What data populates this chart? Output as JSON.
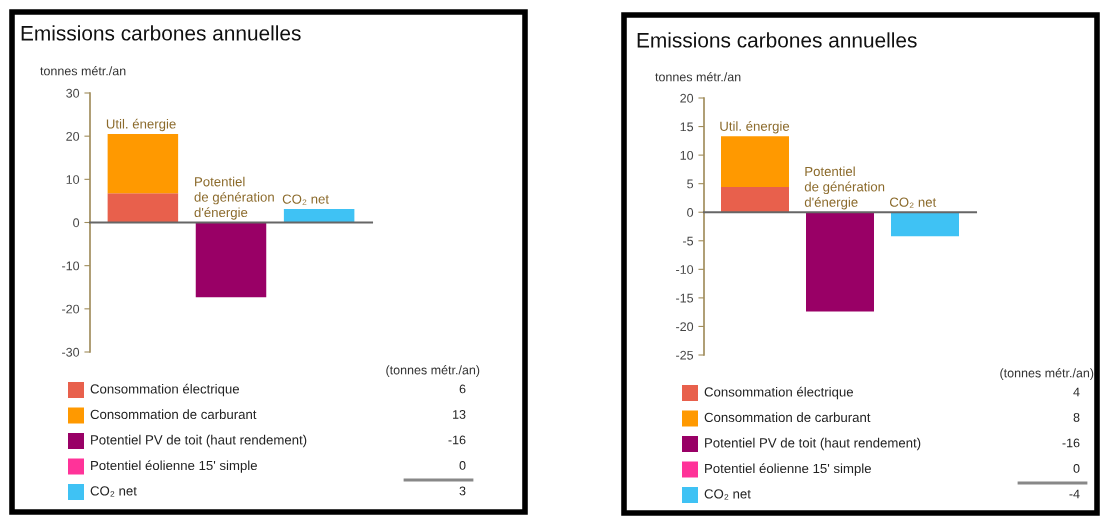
{
  "chart_data": [
    {
      "type": "bar",
      "title": "Emissions carbones annuelles",
      "ylabel": "tonnes métr./an",
      "categories": [
        "Util. énergie",
        "Potentiel\nde génération\nd'énergie",
        "CO₂ net"
      ],
      "stacked": true,
      "ylim": [
        -30,
        30
      ],
      "yticks": [
        -30,
        -20,
        -10,
        0,
        10,
        20,
        30
      ],
      "tick_labels": "y",
      "legend": "bottom",
      "series": [
        {
          "name": "Consommation électrique",
          "color": "#e8604c",
          "values": [
            6.8,
            null,
            null
          ]
        },
        {
          "name": "Consommation de carburant",
          "color": "#ff9900",
          "values": [
            13.7,
            null,
            null
          ]
        },
        {
          "name": "Potentiel PV de toit (haut rendement)",
          "color": "#990066",
          "values": [
            null,
            -17.3,
            null
          ]
        },
        {
          "name": "Potentiel éolienne 15' simple",
          "color": "#ff3399",
          "values": [
            null,
            0,
            null
          ]
        },
        {
          "name": "CO₂ net",
          "color": "#3fc2f4",
          "values": [
            null,
            null,
            3.1
          ]
        }
      ]
    },
    {
      "type": "other",
      "annotations": [
        "(tonnes métr./an)",
        "6",
        "13",
        "-16",
        "0",
        "3"
      ]
    },
    {
      "type": "bar",
      "title": "Emissions carbones annuelles",
      "ylabel": "tonnes métr./an",
      "categories": [
        "Util. énergie",
        "Potentiel\nde génération\nd'énergie",
        "CO₂ net"
      ],
      "stacked": true,
      "ylim": [
        -25,
        20
      ],
      "yticks": [
        -25,
        -20,
        -15,
        -10,
        -5,
        0,
        5,
        10,
        15,
        20
      ],
      "tick_labels": "y",
      "legend": "bottom",
      "series": [
        {
          "name": "Consommation électrique",
          "color": "#e8604c",
          "values": [
            4.4,
            null,
            null
          ]
        },
        {
          "name": "Consommation de carburant",
          "color": "#ff9900",
          "values": [
            8.9,
            null,
            null
          ]
        },
        {
          "name": "Potentiel PV de toit (haut rendement)",
          "color": "#990066",
          "values": [
            null,
            -17.4,
            null
          ]
        },
        {
          "name": "Potentiel éolienne 15' simple",
          "color": "#ff3399",
          "values": [
            null,
            0,
            null
          ]
        },
        {
          "name": "CO₂ net",
          "color": "#3fc2f4",
          "values": [
            null,
            null,
            -4.2
          ]
        }
      ]
    },
    {
      "type": "other",
      "annotations": [
        "(tonnes métr./an)",
        "4",
        "8",
        "-16",
        "0",
        "-4"
      ]
    }
  ]
}
